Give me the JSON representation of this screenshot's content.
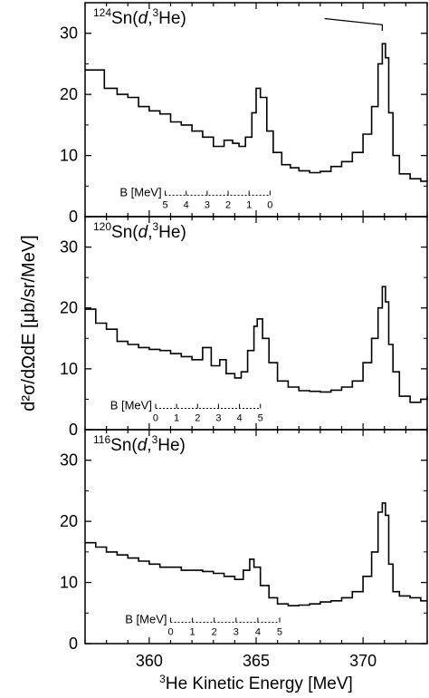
{
  "chart_data": {
    "type": "line",
    "x_label": {
      "sup": "3",
      "text": "He Kinetic Energy [MeV]"
    },
    "y_label": "d²σ/dΩdE [μb/sr/MeV]",
    "xlim": [
      357,
      373
    ],
    "x_ticks": [
      360,
      365,
      370
    ],
    "shared_x": true,
    "panels": [
      {
        "label": {
          "pre_sup": "124",
          "main": "Sn(",
          "italic": "d",
          "sep": ",",
          "sup2": "3",
          "post": "He)"
        },
        "ylim": [
          0,
          35
        ],
        "y_ticks": [
          0,
          10,
          20,
          30
        ],
        "inset": {
          "label": "B [MeV]",
          "range": [
            0,
            5
          ],
          "ticks": [
            "0",
            "1",
            "2",
            "3",
            "4",
            "5"
          ],
          "x_at_0": 365.65,
          "x_at_5": 360.75
        },
        "bracket": {
          "x_start": 368.2,
          "x_end": 370.9,
          "y_top": 32.4,
          "y_hook": 30.4
        },
        "points": [
          [
            357.0,
            24.0
          ],
          [
            357.9,
            21.0
          ],
          [
            358.5,
            20.0
          ],
          [
            359.0,
            19.5
          ],
          [
            359.5,
            18.0
          ],
          [
            360.0,
            17.3
          ],
          [
            360.5,
            16.8
          ],
          [
            361.0,
            15.5
          ],
          [
            361.5,
            15.0
          ],
          [
            362.0,
            14.0
          ],
          [
            362.5,
            13.0
          ],
          [
            363.0,
            11.5
          ],
          [
            363.5,
            12.5
          ],
          [
            363.9,
            12.0
          ],
          [
            364.2,
            11.5
          ],
          [
            364.5,
            13.0
          ],
          [
            364.8,
            17.0
          ],
          [
            365.0,
            21.0
          ],
          [
            365.2,
            19.5
          ],
          [
            365.5,
            14.0
          ],
          [
            365.8,
            10.5
          ],
          [
            366.2,
            8.5
          ],
          [
            366.6,
            8.0
          ],
          [
            367.0,
            7.5
          ],
          [
            367.5,
            7.2
          ],
          [
            368.0,
            7.4
          ],
          [
            368.5,
            8.2
          ],
          [
            369.0,
            9.0
          ],
          [
            369.5,
            10.5
          ],
          [
            370.0,
            13.5
          ],
          [
            370.4,
            18.0
          ],
          [
            370.7,
            25.0
          ],
          [
            370.9,
            28.3
          ],
          [
            371.05,
            26.0
          ],
          [
            371.2,
            17.0
          ],
          [
            371.4,
            10.0
          ],
          [
            371.7,
            7.0
          ],
          [
            372.2,
            6.2
          ],
          [
            372.7,
            5.8
          ],
          [
            373.0,
            5.7
          ]
        ]
      },
      {
        "label": {
          "pre_sup": "120",
          "main": "Sn(",
          "italic": "d",
          "sep": ",",
          "sup2": "3",
          "post": "He)"
        },
        "ylim": [
          0,
          35
        ],
        "y_ticks": [
          0,
          10,
          20,
          30
        ],
        "inset": {
          "label": "B [MeV]",
          "range": [
            0,
            5
          ],
          "ticks": [
            "0",
            "1",
            "2",
            "3",
            "4",
            "5"
          ],
          "x_at_0": 360.3,
          "x_at_5": 365.2
        },
        "bracket": null,
        "points": [
          [
            357.0,
            19.8
          ],
          [
            357.5,
            17.5
          ],
          [
            358.0,
            16.5
          ],
          [
            358.5,
            14.5
          ],
          [
            359.0,
            14.0
          ],
          [
            359.5,
            13.5
          ],
          [
            360.0,
            13.2
          ],
          [
            360.5,
            13.0
          ],
          [
            361.0,
            12.5
          ],
          [
            361.5,
            12.0
          ],
          [
            362.0,
            11.5
          ],
          [
            362.5,
            13.5
          ],
          [
            362.9,
            10.5
          ],
          [
            363.3,
            11.5
          ],
          [
            363.6,
            9.2
          ],
          [
            364.0,
            8.5
          ],
          [
            364.3,
            9.5
          ],
          [
            364.6,
            13.0
          ],
          [
            364.9,
            17.0
          ],
          [
            365.05,
            18.2
          ],
          [
            365.3,
            15.0
          ],
          [
            365.6,
            11.0
          ],
          [
            366.0,
            8.0
          ],
          [
            366.5,
            7.0
          ],
          [
            367.0,
            6.4
          ],
          [
            367.5,
            6.3
          ],
          [
            368.0,
            6.2
          ],
          [
            368.5,
            6.5
          ],
          [
            369.0,
            7.0
          ],
          [
            369.5,
            8.0
          ],
          [
            370.0,
            11.0
          ],
          [
            370.4,
            15.0
          ],
          [
            370.7,
            20.0
          ],
          [
            370.9,
            23.5
          ],
          [
            371.05,
            21.0
          ],
          [
            371.2,
            14.0
          ],
          [
            371.4,
            9.5
          ],
          [
            371.7,
            5.5
          ],
          [
            372.2,
            4.5
          ],
          [
            372.7,
            5.0
          ],
          [
            373.0,
            5.5
          ]
        ]
      },
      {
        "label": {
          "pre_sup": "116",
          "main": "Sn(",
          "italic": "d",
          "sep": ",",
          "sup2": "3",
          "post": "He)"
        },
        "ylim": [
          0,
          35
        ],
        "y_ticks": [
          0,
          10,
          20,
          30
        ],
        "inset": {
          "label": "B [MeV]",
          "range": [
            0,
            5
          ],
          "ticks": [
            "0",
            "1",
            "2",
            "3",
            "4",
            "5"
          ],
          "x_at_0": 361.0,
          "x_at_5": 366.1
        },
        "bracket": null,
        "points": [
          [
            357.0,
            16.5
          ],
          [
            357.5,
            15.8
          ],
          [
            358.0,
            15.0
          ],
          [
            358.5,
            14.5
          ],
          [
            359.0,
            14.0
          ],
          [
            359.5,
            13.5
          ],
          [
            360.0,
            13.0
          ],
          [
            360.5,
            12.5
          ],
          [
            361.0,
            12.5
          ],
          [
            361.5,
            12.0
          ],
          [
            362.0,
            12.0
          ],
          [
            362.5,
            11.8
          ],
          [
            363.0,
            11.5
          ],
          [
            363.5,
            11.0
          ],
          [
            364.0,
            10.5
          ],
          [
            364.4,
            12.0
          ],
          [
            364.7,
            13.8
          ],
          [
            364.9,
            12.5
          ],
          [
            365.2,
            9.5
          ],
          [
            365.6,
            7.5
          ],
          [
            366.0,
            6.5
          ],
          [
            366.5,
            6.2
          ],
          [
            367.0,
            6.3
          ],
          [
            367.5,
            6.5
          ],
          [
            368.0,
            6.8
          ],
          [
            368.5,
            7.0
          ],
          [
            369.0,
            7.5
          ],
          [
            369.5,
            8.5
          ],
          [
            370.0,
            11.0
          ],
          [
            370.4,
            15.0
          ],
          [
            370.7,
            21.5
          ],
          [
            370.9,
            23.0
          ],
          [
            371.05,
            21.0
          ],
          [
            371.2,
            13.0
          ],
          [
            371.4,
            8.5
          ],
          [
            371.7,
            7.8
          ],
          [
            372.2,
            7.5
          ],
          [
            372.7,
            7.0
          ],
          [
            373.0,
            7.0
          ]
        ]
      }
    ]
  }
}
